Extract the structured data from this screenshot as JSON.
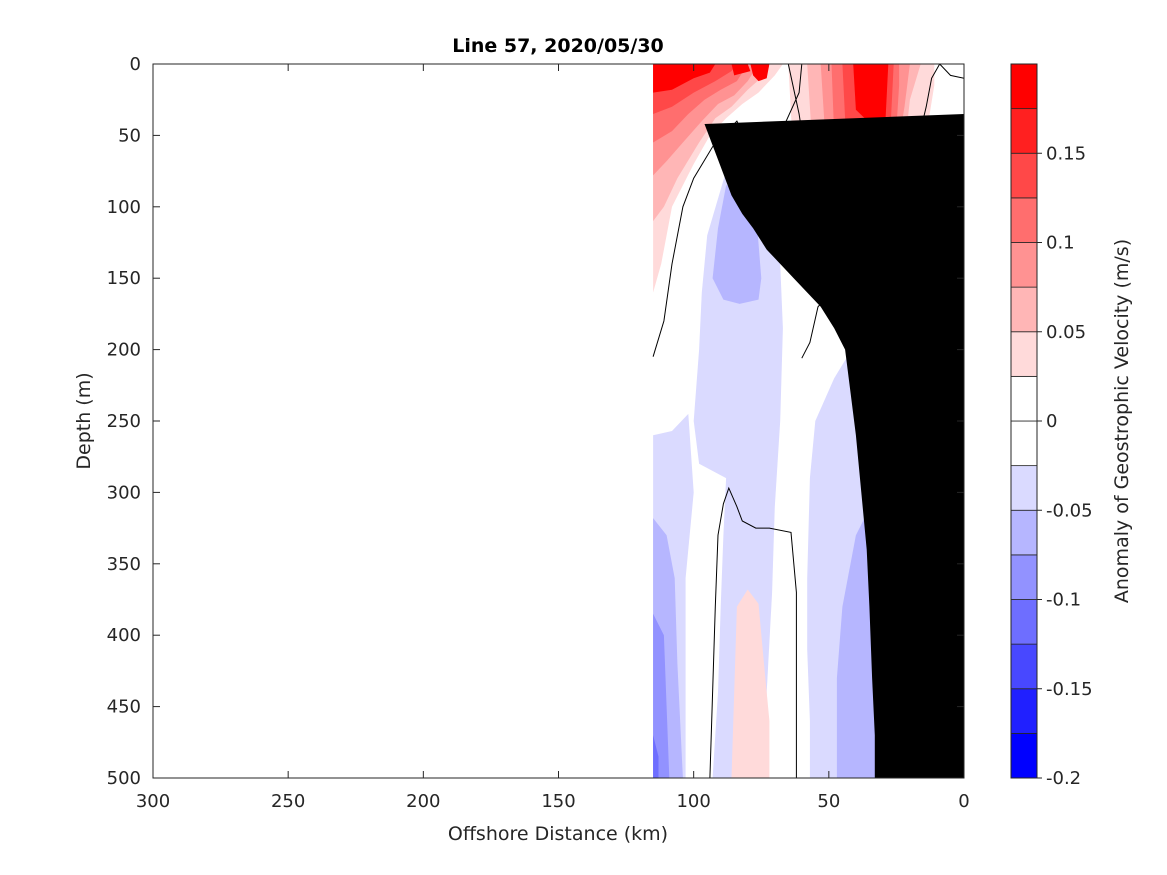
{
  "chart_data": {
    "type": "heatmap",
    "title": "Line 57, 2020/05/30",
    "xlabel": "Offshore Distance (km)",
    "ylabel": "Depth (m)",
    "colorbar_label": "Anomaly of Geostrophic Velocity (m/s)",
    "xlim": [
      300,
      0
    ],
    "ylim": [
      0,
      500
    ],
    "x_ticks": [
      "300",
      "250",
      "200",
      "150",
      "100",
      "50",
      "0"
    ],
    "y_ticks": [
      "0",
      "50",
      "100",
      "150",
      "200",
      "250",
      "300",
      "350",
      "400",
      "450",
      "500"
    ],
    "colorbar_range": [
      -0.2,
      0.2
    ],
    "colorbar_ticks": [
      "0.15",
      "0.1",
      "0.05",
      "0",
      "-0.05",
      "-0.1",
      "-0.15",
      "-0.2"
    ],
    "colorbar_levels": [
      {
        "range": [
          -0.2,
          -0.175
        ],
        "color": "#0000ff"
      },
      {
        "range": [
          -0.175,
          -0.15
        ],
        "color": "#2020ff"
      },
      {
        "range": [
          -0.15,
          -0.125
        ],
        "color": "#4848ff"
      },
      {
        "range": [
          -0.125,
          -0.1
        ],
        "color": "#6e6eff"
      },
      {
        "range": [
          -0.1,
          -0.075
        ],
        "color": "#9292ff"
      },
      {
        "range": [
          -0.075,
          -0.05
        ],
        "color": "#b6b6ff"
      },
      {
        "range": [
          -0.05,
          -0.025
        ],
        "color": "#dadaff"
      },
      {
        "range": [
          -0.025,
          0
        ],
        "color": "#ffffff"
      },
      {
        "range": [
          0,
          0.025
        ],
        "color": "#ffffff"
      },
      {
        "range": [
          0.025,
          0.05
        ],
        "color": "#ffdada"
      },
      {
        "range": [
          0.05,
          0.075
        ],
        "color": "#ffb6b6"
      },
      {
        "range": [
          0.075,
          0.1
        ],
        "color": "#ff9292"
      },
      {
        "range": [
          0.1,
          0.125
        ],
        "color": "#ff6e6e"
      },
      {
        "range": [
          0.125,
          0.15
        ],
        "color": "#ff4848"
      },
      {
        "range": [
          0.15,
          0.175
        ],
        "color": "#ff2020"
      },
      {
        "range": [
          0.175,
          0.2
        ],
        "color": "#ff0000"
      }
    ],
    "regions": [
      {
        "name": "neg1-offshore-deep",
        "color": "#dadaff",
        "points": [
          [
            115,
            260
          ],
          [
            108,
            257
          ],
          [
            102,
            245
          ],
          [
            100,
            300
          ],
          [
            103,
            360
          ],
          [
            103,
            500
          ],
          [
            115,
            500
          ]
        ]
      },
      {
        "name": "neg2-offshore-deep",
        "color": "#b6b6ff",
        "points": [
          [
            115,
            318
          ],
          [
            110,
            330
          ],
          [
            107,
            360
          ],
          [
            106,
            420
          ],
          [
            104,
            500
          ],
          [
            115,
            500
          ]
        ]
      },
      {
        "name": "neg3-offshore-deep",
        "color": "#9292ff",
        "points": [
          [
            115,
            385
          ],
          [
            111,
            400
          ],
          [
            110,
            450
          ],
          [
            109,
            500
          ],
          [
            115,
            500
          ]
        ]
      },
      {
        "name": "neg4-offshore-deep",
        "color": "#6e6eff",
        "points": [
          [
            115,
            470
          ],
          [
            113,
            485
          ],
          [
            113,
            500
          ],
          [
            115,
            500
          ]
        ]
      },
      {
        "name": "neg1-mid-column",
        "color": "#dadaff",
        "points": [
          [
            97,
            160
          ],
          [
            95,
            120
          ],
          [
            88,
            75
          ],
          [
            82,
            60
          ],
          [
            76,
            75
          ],
          [
            73,
            100
          ],
          [
            68,
            140
          ],
          [
            67,
            185
          ],
          [
            68,
            250
          ],
          [
            70,
            310
          ],
          [
            71,
            370
          ],
          [
            73,
            440
          ],
          [
            73,
            500
          ],
          [
            93,
            500
          ],
          [
            91,
            440
          ],
          [
            90,
            380
          ],
          [
            89,
            330
          ],
          [
            88,
            290
          ],
          [
            98,
            280
          ],
          [
            100,
            250
          ],
          [
            98,
            200
          ]
        ]
      },
      {
        "name": "neg2-mid-column",
        "color": "#b6b6ff",
        "points": [
          [
            93,
            150
          ],
          [
            91,
            115
          ],
          [
            88,
            85
          ],
          [
            82,
            85
          ],
          [
            77,
            102
          ],
          [
            75,
            150
          ],
          [
            76,
            165
          ],
          [
            83,
            168
          ],
          [
            89,
            165
          ]
        ]
      },
      {
        "name": "neg1-shelf",
        "color": "#dadaff",
        "points": [
          [
            57,
            460
          ],
          [
            58,
            410
          ],
          [
            58,
            360
          ],
          [
            57,
            290
          ],
          [
            55,
            250
          ],
          [
            48,
            220
          ],
          [
            40,
            195
          ],
          [
            30,
            180
          ],
          [
            22,
            185
          ],
          [
            22,
            500
          ],
          [
            57,
            500
          ]
        ]
      },
      {
        "name": "neg2-shelf",
        "color": "#b6b6ff",
        "points": [
          [
            47,
            500
          ],
          [
            47,
            430
          ],
          [
            45,
            380
          ],
          [
            40,
            330
          ],
          [
            32,
            300
          ],
          [
            28,
            300
          ],
          [
            28,
            500
          ]
        ]
      },
      {
        "name": "pos1-lens-deep",
        "color": "#ffdada",
        "points": [
          [
            86,
            500
          ],
          [
            85,
            440
          ],
          [
            84,
            380
          ],
          [
            80,
            368
          ],
          [
            76,
            378
          ],
          [
            74,
            420
          ],
          [
            72,
            460
          ],
          [
            72,
            500
          ]
        ]
      },
      {
        "name": "pos1-slope-core",
        "color": "#ffdada",
        "points": [
          [
            65,
            0
          ],
          [
            63,
            70
          ],
          [
            61,
            110
          ],
          [
            58,
            140
          ],
          [
            53,
            155
          ],
          [
            45,
            158
          ],
          [
            38,
            152
          ],
          [
            32,
            145
          ],
          [
            25,
            145
          ],
          [
            20,
            140
          ],
          [
            18,
            110
          ],
          [
            14,
            50
          ],
          [
            11,
            15
          ],
          [
            11,
            0
          ]
        ]
      },
      {
        "name": "pos2-slope-core",
        "color": "#ffb6b6",
        "points": [
          [
            58,
            0
          ],
          [
            56,
            60
          ],
          [
            54,
            95
          ],
          [
            48,
            110
          ],
          [
            38,
            108
          ],
          [
            30,
            105
          ],
          [
            24,
            100
          ],
          [
            22,
            60
          ],
          [
            20,
            25
          ],
          [
            16,
            0
          ]
        ]
      },
      {
        "name": "pos3-slope-core",
        "color": "#ff9292",
        "points": [
          [
            53,
            0
          ],
          [
            51,
            60
          ],
          [
            47,
            88
          ],
          [
            38,
            90
          ],
          [
            30,
            88
          ],
          [
            25,
            65
          ],
          [
            22,
            30
          ],
          [
            20,
            0
          ]
        ]
      },
      {
        "name": "pos4-slope-core",
        "color": "#ff6e6e",
        "points": [
          [
            49,
            0
          ],
          [
            48,
            50
          ],
          [
            43,
            72
          ],
          [
            35,
            75
          ],
          [
            28,
            70
          ],
          [
            25,
            45
          ],
          [
            24,
            15
          ],
          [
            24,
            0
          ]
        ]
      },
      {
        "name": "pos5-slope-core",
        "color": "#ff4848",
        "points": [
          [
            45,
            0
          ],
          [
            44,
            38
          ],
          [
            38,
            55
          ],
          [
            30,
            55
          ],
          [
            27,
            38
          ],
          [
            26,
            0
          ]
        ]
      },
      {
        "name": "pos6-slope-core",
        "color": "#ff0000",
        "points": [
          [
            41,
            0
          ],
          [
            40,
            32
          ],
          [
            34,
            43
          ],
          [
            29,
            38
          ],
          [
            28,
            0
          ]
        ]
      },
      {
        "name": "pos1-offshore-surface",
        "color": "#ffdada",
        "points": [
          [
            115,
            0
          ],
          [
            115,
            160
          ],
          [
            112,
            140
          ],
          [
            108,
            100
          ],
          [
            100,
            70
          ],
          [
            94,
            50
          ],
          [
            88,
            38
          ],
          [
            82,
            28
          ],
          [
            76,
            20
          ],
          [
            70,
            8
          ],
          [
            67,
            0
          ]
        ]
      },
      {
        "name": "pos2-offshore-surface",
        "color": "#ffb6b6",
        "points": [
          [
            115,
            0
          ],
          [
            115,
            110
          ],
          [
            111,
            100
          ],
          [
            106,
            80
          ],
          [
            98,
            55
          ],
          [
            92,
            38
          ],
          [
            86,
            30
          ],
          [
            80,
            18
          ],
          [
            74,
            8
          ],
          [
            72,
            0
          ]
        ]
      },
      {
        "name": "pos3-offshore-surface",
        "color": "#ff9292",
        "points": [
          [
            115,
            0
          ],
          [
            115,
            78
          ],
          [
            110,
            68
          ],
          [
            104,
            55
          ],
          [
            97,
            40
          ],
          [
            91,
            28
          ],
          [
            85,
            22
          ],
          [
            80,
            12
          ],
          [
            76,
            0
          ]
        ]
      },
      {
        "name": "pos4-offshore-surface",
        "color": "#ff6e6e",
        "points": [
          [
            115,
            0
          ],
          [
            115,
            55
          ],
          [
            108,
            47
          ],
          [
            102,
            35
          ],
          [
            96,
            25
          ],
          [
            90,
            18
          ],
          [
            84,
            12
          ],
          [
            80,
            0
          ]
        ]
      },
      {
        "name": "pos5-offshore-surface",
        "color": "#ff4848",
        "points": [
          [
            115,
            0
          ],
          [
            115,
            35
          ],
          [
            108,
            30
          ],
          [
            100,
            20
          ],
          [
            92,
            12
          ],
          [
            86,
            5
          ],
          [
            84,
            0
          ]
        ]
      },
      {
        "name": "pos6-offshore-surface",
        "color": "#ff0000",
        "points": [
          [
            115,
            0
          ],
          [
            115,
            20
          ],
          [
            108,
            18
          ],
          [
            100,
            10
          ],
          [
            94,
            6
          ],
          [
            92,
            0
          ]
        ]
      },
      {
        "name": "pos6-surface-blob",
        "color": "#ff0000",
        "points": [
          [
            79,
            0
          ],
          [
            78,
            8
          ],
          [
            76,
            12
          ],
          [
            73,
            10
          ],
          [
            72,
            0
          ]
        ]
      },
      {
        "name": "pos6-offshore-surface-2",
        "color": "#ff0000",
        "points": [
          [
            86,
            0
          ],
          [
            85,
            8
          ],
          [
            79,
            5
          ],
          [
            80,
            0
          ]
        ]
      }
    ],
    "contour_lines": [
      [
        [
          115,
          205
        ],
        [
          111,
          180
        ],
        [
          108,
          140
        ],
        [
          104,
          100
        ],
        [
          100,
          80
        ],
        [
          93,
          58
        ],
        [
          88,
          48
        ],
        [
          84,
          40
        ],
        [
          80,
          55
        ],
        [
          77,
          58
        ],
        [
          72,
          50
        ],
        [
          67,
          45
        ],
        [
          61,
          20
        ],
        [
          60,
          0
        ]
      ],
      [
        [
          65,
          0
        ],
        [
          61,
          35
        ],
        [
          59,
          60
        ],
        [
          58,
          100
        ],
        [
          56,
          125
        ],
        [
          53,
          145
        ],
        [
          50,
          152
        ],
        [
          44,
          148
        ],
        [
          38,
          140
        ],
        [
          32,
          132
        ],
        [
          28,
          128
        ],
        [
          22,
          100
        ],
        [
          18,
          62
        ],
        [
          14,
          30
        ],
        [
          12,
          10
        ],
        [
          9,
          0
        ]
      ],
      [
        [
          60,
          206
        ],
        [
          57,
          195
        ],
        [
          54,
          170
        ],
        [
          49,
          160
        ],
        [
          42,
          153
        ],
        [
          35,
          150
        ],
        [
          28,
          152
        ],
        [
          21,
          158
        ],
        [
          20,
          150
        ]
      ],
      [
        [
          94,
          500
        ],
        [
          93,
          440
        ],
        [
          92,
          380
        ],
        [
          91,
          330
        ],
        [
          89,
          308
        ],
        [
          87,
          297
        ],
        [
          84,
          310
        ],
        [
          82,
          320
        ],
        [
          77,
          325
        ],
        [
          72,
          325
        ],
        [
          64,
          328
        ],
        [
          62,
          370
        ],
        [
          62,
          440
        ],
        [
          62,
          500
        ]
      ],
      [
        [
          9,
          0
        ],
        [
          5,
          8
        ],
        [
          0,
          10
        ]
      ]
    ],
    "land_mask": {
      "color": "#000000",
      "points": [
        [
          0,
          35
        ],
        [
          0,
          500
        ],
        [
          33,
          500
        ],
        [
          33,
          470
        ],
        [
          34,
          430
        ],
        [
          35,
          380
        ],
        [
          36,
          340
        ],
        [
          38,
          300
        ],
        [
          40,
          260
        ],
        [
          42,
          230
        ],
        [
          44,
          200
        ],
        [
          48,
          185
        ],
        [
          53,
          170
        ],
        [
          58,
          160
        ],
        [
          63,
          150
        ],
        [
          68,
          140
        ],
        [
          73,
          130
        ],
        [
          78,
          115
        ],
        [
          82,
          105
        ],
        [
          86,
          92
        ],
        [
          88,
          82
        ],
        [
          90,
          72
        ],
        [
          92,
          62
        ],
        [
          94,
          52
        ],
        [
          96,
          42
        ],
        [
          0,
          35
        ]
      ]
    }
  }
}
